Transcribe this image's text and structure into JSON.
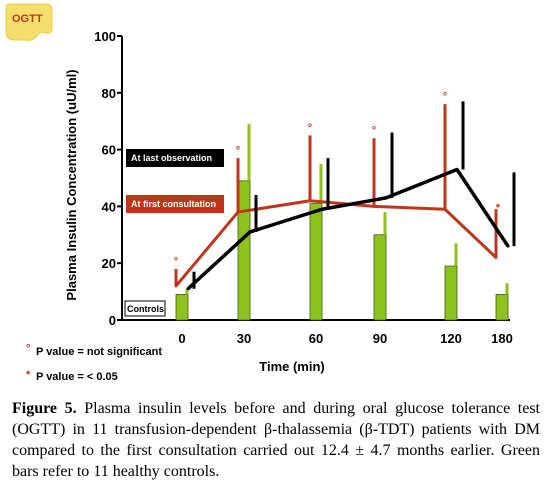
{
  "badge": {
    "label": "OGTT",
    "color": "#f3e06a"
  },
  "legend": {
    "last_observation": "At last observation",
    "first_consultation": "At first consultation",
    "controls": "Controls"
  },
  "notes": {
    "ns_symbol": "°",
    "ns_text": "P value = not significant",
    "sig_symbol": "*",
    "sig_text": "P value = < 0.05"
  },
  "caption": {
    "lead": "Figure 5.",
    "text": " Plasma insulin levels before and during oral glucose tolerance test (OGTT) in 11 transfusion-dependent β-thalassemia (β-TDT) patients with DM compared to the first consultation carried out 12.4 ± 4.7 months earlier. Green bars refer to 11 healthy controls."
  },
  "chart_data": {
    "type": "bar+line",
    "ylabel": "Plasma Insulin Concentration (uU/ml)",
    "xlabel": "Time (min)",
    "ylim": [
      0,
      100
    ],
    "yticks": [
      0,
      20,
      40,
      60,
      80,
      100
    ],
    "x": [
      0,
      30,
      60,
      90,
      120,
      180
    ],
    "xtick_labels": [
      "0",
      "30",
      "60",
      "90",
      "120",
      "180"
    ],
    "series": [
      {
        "name": "Controls",
        "type": "bar",
        "color": "#8ec21f",
        "values": [
          9,
          49,
          41,
          30,
          19,
          9
        ],
        "errors": [
          2,
          20,
          14,
          8,
          8,
          4
        ]
      },
      {
        "name": "At first consultation",
        "type": "line",
        "color": "#c0361b",
        "values": [
          12,
          38,
          42,
          40,
          39,
          22
        ],
        "errors": [
          6,
          19,
          23,
          24,
          37,
          17
        ]
      },
      {
        "name": "At last observation",
        "type": "line",
        "color": "#000000",
        "values": [
          11,
          31,
          39,
          43,
          53,
          26
        ],
        "errors": [
          6,
          13,
          18,
          23,
          24,
          26
        ]
      }
    ],
    "significance": [
      "°",
      "°",
      "°",
      "°",
      "°",
      "*"
    ],
    "colors": {
      "controls": "#8ec21f",
      "first": "#c0361b",
      "last": "#000000",
      "legend_bg": "#000000",
      "legend_first_bg": "#c0361b"
    }
  }
}
